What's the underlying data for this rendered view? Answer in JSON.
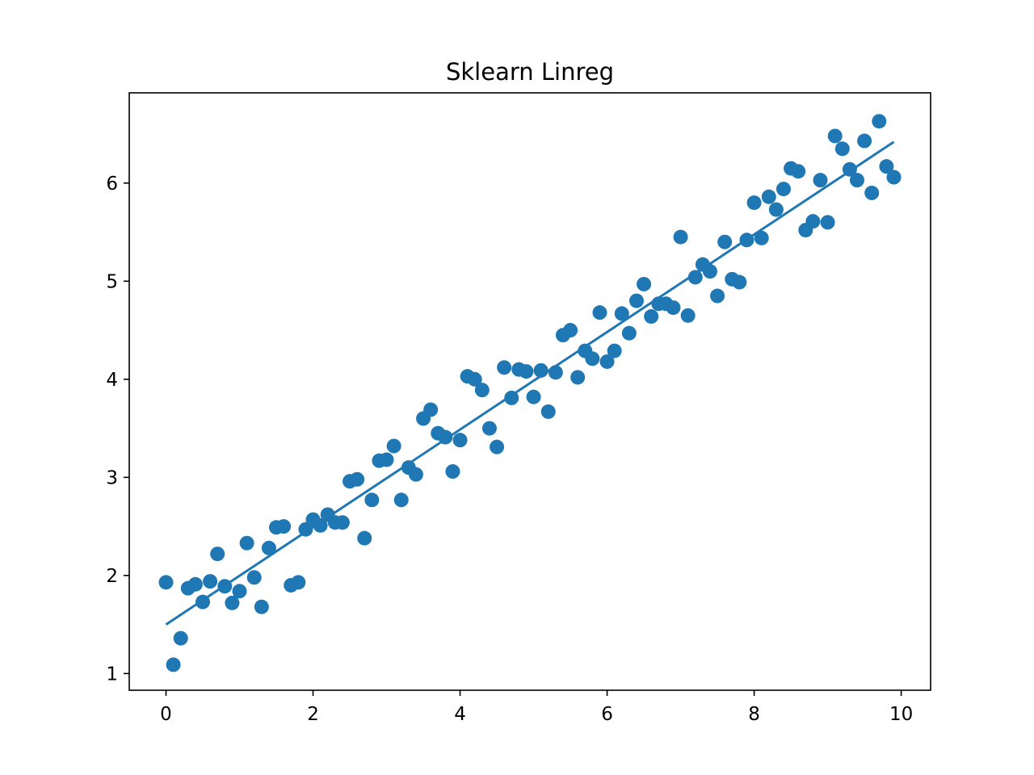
{
  "chart_data": {
    "type": "scatter",
    "title": "Sklearn Linreg",
    "xlabel": "",
    "ylabel": "",
    "xlim": [
      -0.5,
      10.4
    ],
    "ylim": [
      0.83,
      6.92
    ],
    "xticks": [
      0,
      2,
      4,
      6,
      8,
      10
    ],
    "yticks": [
      1,
      2,
      3,
      4,
      5,
      6
    ],
    "grid": false,
    "color": "#1f77b4",
    "series": [
      {
        "type": "scatter",
        "x": [
          0.0,
          0.1,
          0.2,
          0.3,
          0.4,
          0.5,
          0.6,
          0.7,
          0.8,
          0.9,
          1.0,
          1.1,
          1.2,
          1.3,
          1.4,
          1.5,
          1.6,
          1.7,
          1.8,
          1.9,
          2.0,
          2.1,
          2.2,
          2.3,
          2.4,
          2.5,
          2.6,
          2.7,
          2.8,
          2.9,
          3.0,
          3.1,
          3.2,
          3.3,
          3.4,
          3.5,
          3.6,
          3.7,
          3.8,
          3.9,
          4.0,
          4.1,
          4.2,
          4.3,
          4.4,
          4.5,
          4.6,
          4.7,
          4.8,
          4.9,
          5.0,
          5.1,
          5.2,
          5.3,
          5.4,
          5.5,
          5.6,
          5.7,
          5.8,
          5.9,
          6.0,
          6.1,
          6.2,
          6.3,
          6.4,
          6.5,
          6.6,
          6.7,
          6.8,
          6.9,
          7.0,
          7.1,
          7.2,
          7.3,
          7.4,
          7.5,
          7.6,
          7.7,
          7.8,
          7.9,
          8.0,
          8.1,
          8.2,
          8.3,
          8.4,
          8.5,
          8.6,
          8.7,
          8.8,
          8.9,
          9.0,
          9.1,
          9.2,
          9.3,
          9.4,
          9.5,
          9.6,
          9.7,
          9.8,
          9.9
        ],
        "y": [
          1.93,
          1.09,
          1.36,
          1.87,
          1.91,
          1.73,
          1.94,
          2.22,
          1.89,
          1.72,
          1.84,
          2.33,
          1.98,
          1.68,
          2.28,
          2.49,
          2.5,
          1.9,
          1.93,
          2.47,
          2.57,
          2.51,
          2.62,
          2.54,
          2.54,
          2.96,
          2.98,
          2.38,
          2.77,
          3.17,
          3.18,
          3.32,
          2.77,
          3.1,
          3.03,
          3.6,
          3.69,
          3.45,
          3.41,
          3.06,
          3.38,
          4.03,
          4.0,
          3.89,
          3.5,
          3.31,
          4.12,
          3.81,
          4.1,
          4.08,
          3.82,
          4.09,
          3.67,
          4.07,
          4.45,
          4.5,
          4.02,
          4.29,
          4.21,
          4.68,
          4.18,
          4.29,
          4.67,
          4.47,
          4.8,
          4.97,
          4.64,
          4.77,
          4.77,
          4.73,
          5.45,
          4.65,
          5.04,
          5.17,
          5.1,
          4.85,
          5.4,
          5.02,
          4.99,
          5.42,
          5.8,
          5.44,
          5.86,
          5.73,
          5.94,
          6.15,
          6.12,
          5.52,
          5.61,
          6.03,
          5.6,
          6.48,
          6.35,
          6.14,
          6.03,
          6.43,
          5.9,
          6.63,
          6.17,
          6.06
        ]
      },
      {
        "type": "line",
        "x": [
          0.0,
          9.9
        ],
        "y": [
          1.5,
          6.42
        ]
      }
    ]
  }
}
